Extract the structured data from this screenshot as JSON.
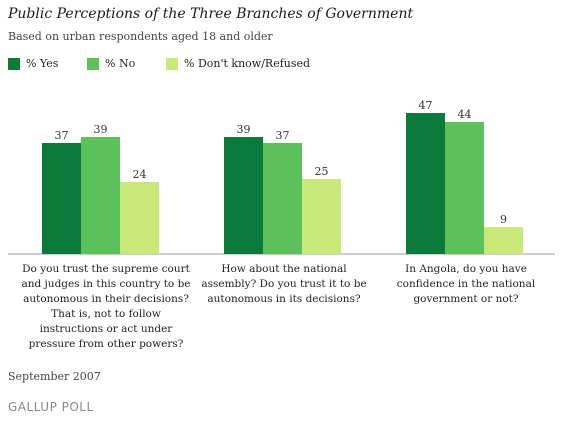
{
  "header": {
    "title": "Public Perceptions of the Three Branches of Government",
    "subtitle": "Based on urban respondents aged 18 and older"
  },
  "colors": {
    "yes": "#0b7a3b",
    "no": "#5cc15b",
    "dontknow": "#c8e87a",
    "axis": "#999999"
  },
  "chart_data": {
    "type": "bar",
    "title": "Public Perceptions of the Three Branches of Government",
    "subtitle": "Based on urban respondents aged 18 and older",
    "legend_position": "top-left",
    "grid": false,
    "categories": [
      "Do you trust the supreme court and judges in this country to be autonomous in their decisions? That is, not to follow instructions or act under pressure from other powers?",
      "How about the national assembly? Do you trust it to be autonomous in its decisions?",
      "In Angola, do you have confidence in the national government or not?"
    ],
    "series": [
      {
        "name": "% Yes",
        "values": [
          37,
          39,
          47
        ]
      },
      {
        "name": "% No",
        "values": [
          39,
          37,
          44
        ]
      },
      {
        "name": "% Don't know/Refused",
        "values": [
          24,
          25,
          9
        ]
      }
    ],
    "ylim": [
      0,
      47
    ]
  },
  "footer": {
    "date": "September 2007",
    "brand": "GALLUP POLL"
  }
}
